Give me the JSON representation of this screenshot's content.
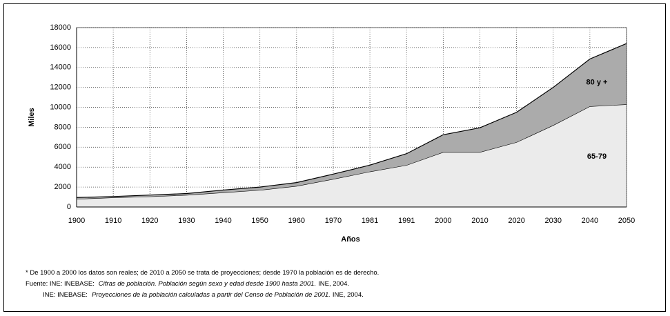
{
  "chart_data": {
    "type": "stacked_area",
    "xlabel": "Años",
    "ylabel": "Miles",
    "categories": [
      "1900",
      "1910",
      "1920",
      "1930",
      "1940",
      "1950",
      "1960",
      "1970",
      "1981",
      "1991",
      "2000",
      "2010",
      "2020",
      "2030",
      "2040",
      "2050"
    ],
    "series": [
      {
        "name": "65-79",
        "color": "#ebebeb",
        "values": [
          800,
          950,
          1050,
          1200,
          1450,
          1700,
          2100,
          2800,
          3550,
          4200,
          5500,
          5500,
          6500,
          8200,
          10100,
          10300
        ]
      },
      {
        "name": "80 y +",
        "color": "#ababab",
        "values": [
          150,
          100,
          150,
          150,
          250,
          300,
          350,
          500,
          650,
          1150,
          1750,
          2450,
          3000,
          3800,
          4750,
          6100
        ]
      }
    ],
    "ylim": [
      0,
      18000
    ],
    "yticks": [
      0,
      2000,
      4000,
      6000,
      8000,
      10000,
      12000,
      14000,
      16000,
      18000
    ],
    "grid": true,
    "notes": [
      {
        "text": "* De 1900 a 2000 los datos son reales; de 2010 a 2050 se trata de proyecciones; desde 1970 la población es de derecho."
      },
      {
        "prefix": "Fuente: INE: INEBASE:",
        "italic": "Cifras de población. Población según sexo y edad desde 1900 hasta 2001.",
        "suffix": "INE, 2004."
      },
      {
        "prefix": "INE: INEBASE:",
        "italic": "Proyecciones de la población calculadas a partir del Censo de Población de 2001.",
        "suffix": "INE, 2004."
      }
    ]
  }
}
